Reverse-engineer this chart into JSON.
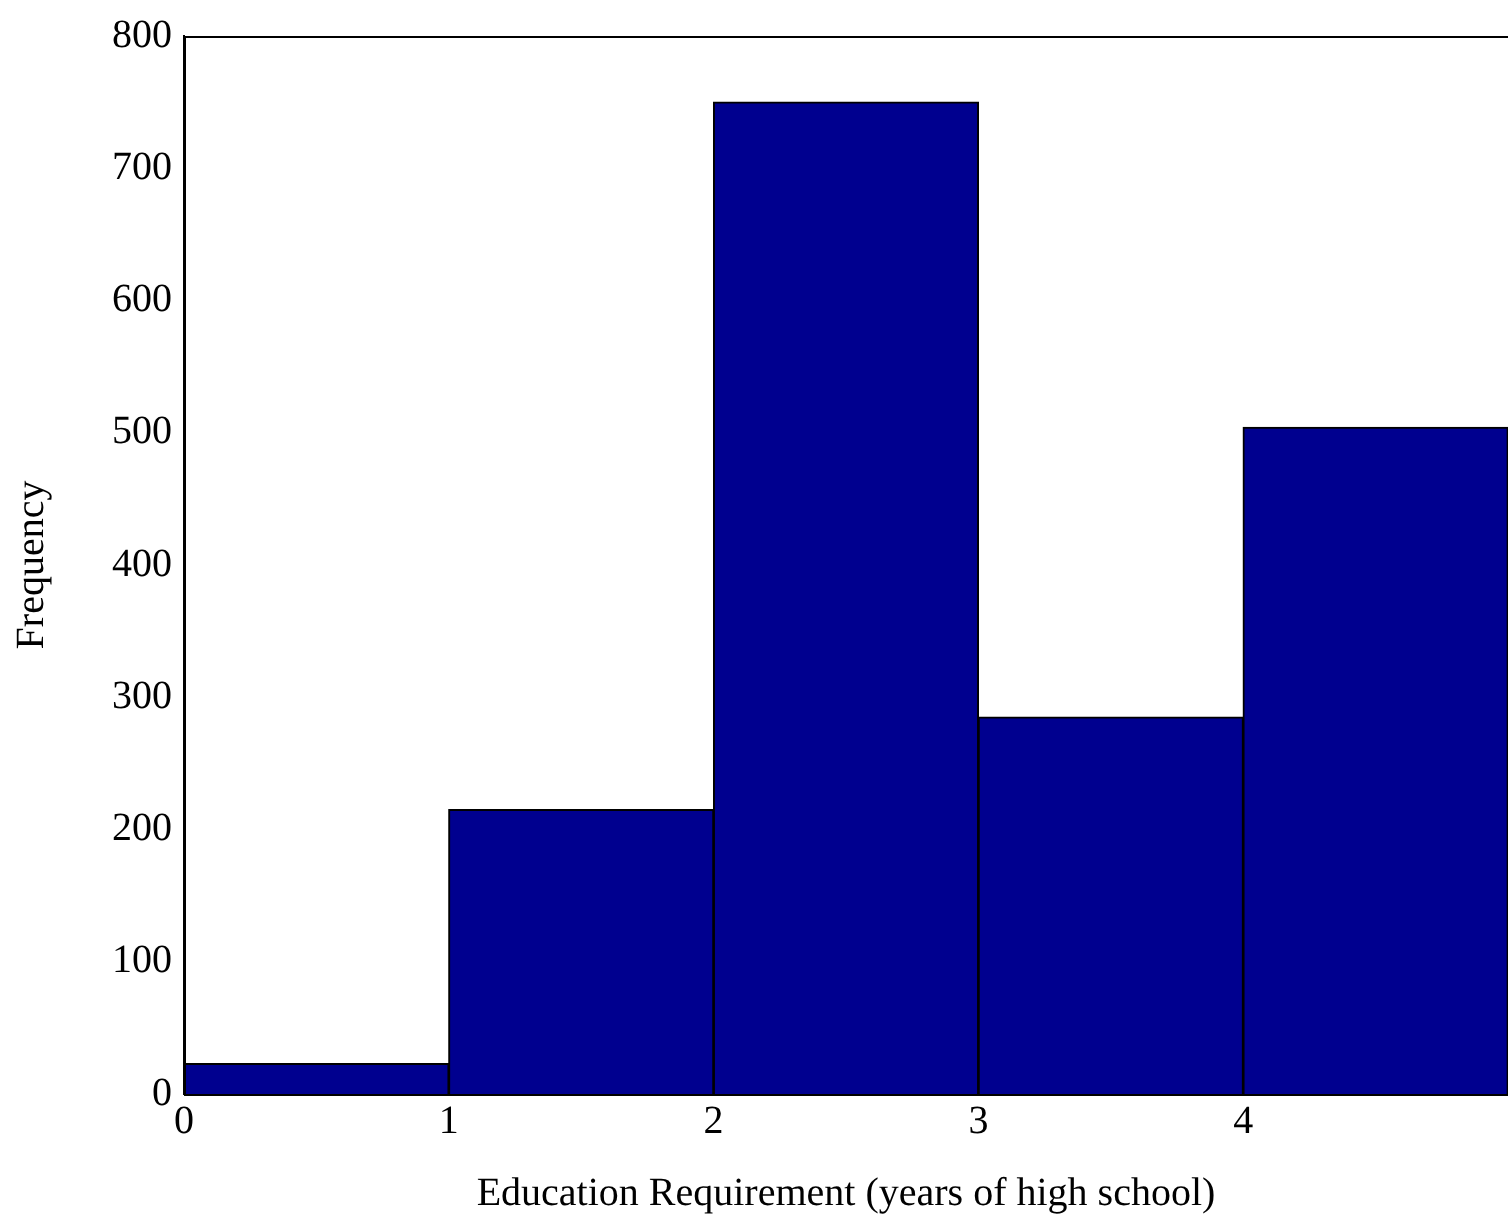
{
  "chart_data": {
    "type": "histogram",
    "xlabel": "Education Requirement (years of high school)",
    "ylabel": "Frequency",
    "bins": [
      0,
      1,
      2,
      3,
      4,
      5
    ],
    "values": [
      23,
      215,
      750,
      285,
      504
    ],
    "color": "#00008f",
    "xlim": [
      0,
      5
    ],
    "xticks": [
      0,
      1,
      2,
      3,
      4
    ],
    "ylim": [
      0,
      800
    ],
    "yticks": [
      0,
      100,
      200,
      300,
      400,
      500,
      600,
      700,
      800
    ],
    "grid": false,
    "legend": false
  }
}
